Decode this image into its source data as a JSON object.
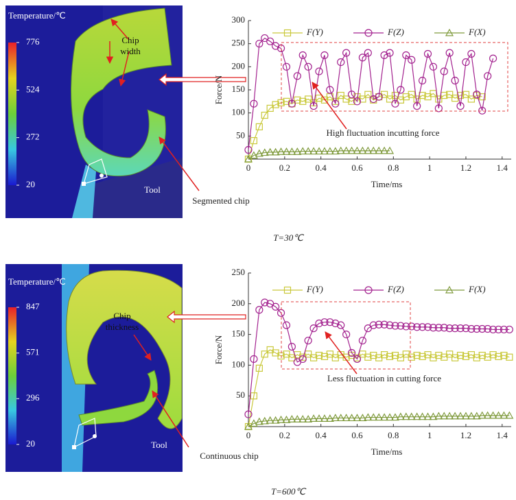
{
  "chart_data": [
    {
      "type": "line",
      "x_label": "Time/ms",
      "y_label": "Force/N",
      "xlim": [
        0,
        1.45
      ],
      "ylim": [
        0,
        300
      ],
      "xticks": [
        0,
        0.2,
        0.4,
        0.6,
        0.8,
        1.0,
        1.2,
        1.4
      ],
      "yticks": [
        50,
        100,
        150,
        200,
        250,
        300
      ],
      "legend": "top",
      "grid": false,
      "annotation": "High fluctuation incutting force",
      "x": [
        0,
        0.03,
        0.06,
        0.09,
        0.12,
        0.15,
        0.18,
        0.21,
        0.24,
        0.27,
        0.3,
        0.33,
        0.36,
        0.39,
        0.42,
        0.45,
        0.48,
        0.51,
        0.54,
        0.57,
        0.6,
        0.63,
        0.66,
        0.69,
        0.72,
        0.75,
        0.78,
        0.81,
        0.84,
        0.87,
        0.9,
        0.93,
        0.96,
        0.99,
        1.02,
        1.05,
        1.08,
        1.11,
        1.14,
        1.17,
        1.2,
        1.23,
        1.26,
        1.29,
        1.32,
        1.35
      ],
      "series": [
        {
          "name": "F(Y)",
          "color": "#c9c83a",
          "marker": "square",
          "values": [
            0,
            40,
            70,
            95,
            110,
            118,
            122,
            125,
            120,
            128,
            125,
            130,
            122,
            132,
            128,
            135,
            125,
            138,
            130,
            125,
            135,
            130,
            140,
            128,
            135,
            140,
            130,
            138,
            128,
            135,
            140,
            130,
            138,
            135,
            142,
            130,
            138,
            140,
            132,
            138,
            140,
            130,
            138,
            135,
            null,
            null
          ]
        },
        {
          "name": "F(Z)",
          "color": "#a3228f",
          "marker": "circle",
          "values": [
            20,
            120,
            250,
            262,
            255,
            245,
            240,
            200,
            120,
            180,
            225,
            200,
            115,
            190,
            225,
            150,
            120,
            210,
            230,
            140,
            125,
            220,
            230,
            130,
            135,
            225,
            230,
            120,
            150,
            225,
            215,
            115,
            170,
            228,
            200,
            110,
            190,
            230,
            170,
            115,
            210,
            228,
            140,
            105,
            180,
            218
          ]
        },
        {
          "name": "F(X)",
          "color": "#7f9a3c",
          "marker": "triangle",
          "values": [
            0,
            8,
            12,
            14,
            15,
            15,
            16,
            16,
            16,
            16,
            17,
            17,
            17,
            17,
            17,
            17,
            17,
            18,
            18,
            18,
            18,
            18,
            18,
            18,
            18,
            18,
            18,
            null,
            null,
            null,
            null,
            null,
            null,
            null,
            null,
            null,
            null,
            null,
            null,
            null,
            null,
            null,
            null,
            null,
            null,
            null
          ]
        }
      ]
    },
    {
      "type": "line",
      "x_label": "Time/ms",
      "y_label": "Force/N",
      "xlim": [
        0,
        1.45
      ],
      "ylim": [
        0,
        250
      ],
      "xticks": [
        0,
        0.2,
        0.4,
        0.6,
        0.8,
        1.0,
        1.2,
        1.4
      ],
      "yticks": [
        50,
        100,
        150,
        200,
        250
      ],
      "legend": "top",
      "grid": false,
      "annotation": "Less fluctuation in cutting force",
      "x": [
        0,
        0.03,
        0.06,
        0.09,
        0.12,
        0.15,
        0.18,
        0.21,
        0.24,
        0.27,
        0.3,
        0.33,
        0.36,
        0.39,
        0.42,
        0.45,
        0.48,
        0.51,
        0.54,
        0.57,
        0.6,
        0.63,
        0.66,
        0.69,
        0.72,
        0.75,
        0.78,
        0.81,
        0.84,
        0.87,
        0.9,
        0.93,
        0.96,
        0.99,
        1.02,
        1.05,
        1.08,
        1.11,
        1.14,
        1.17,
        1.2,
        1.23,
        1.26,
        1.29,
        1.32,
        1.35,
        1.38,
        1.41,
        1.44
      ],
      "series": [
        {
          "name": "F(Y)",
          "color": "#c9c83a",
          "marker": "square",
          "values": [
            0,
            50,
            95,
            118,
            125,
            120,
            115,
            118,
            112,
            117,
            113,
            118,
            112,
            116,
            114,
            118,
            112,
            117,
            113,
            116,
            112,
            118,
            113,
            116,
            112,
            117,
            114,
            116,
            112,
            118,
            113,
            116,
            114,
            117,
            112,
            116,
            113,
            118,
            112,
            116,
            114,
            117,
            112,
            116,
            113,
            117,
            114,
            116,
            113
          ]
        },
        {
          "name": "F(Z)",
          "color": "#a3228f",
          "marker": "circle",
          "values": [
            20,
            110,
            190,
            202,
            200,
            195,
            185,
            165,
            130,
            105,
            110,
            140,
            160,
            168,
            170,
            170,
            168,
            165,
            150,
            120,
            110,
            140,
            160,
            165,
            166,
            166,
            165,
            164,
            164,
            163,
            163,
            162,
            162,
            162,
            161,
            161,
            161,
            160,
            160,
            160,
            160,
            159,
            159,
            159,
            159,
            158,
            158,
            158,
            158
          ]
        },
        {
          "name": "F(X)",
          "color": "#7f9a3c",
          "marker": "triangle",
          "values": [
            0,
            5,
            8,
            9,
            10,
            10,
            11,
            11,
            12,
            12,
            12,
            12,
            13,
            13,
            13,
            13,
            14,
            14,
            14,
            14,
            14,
            14,
            15,
            15,
            15,
            15,
            15,
            15,
            16,
            16,
            16,
            16,
            16,
            16,
            16,
            17,
            17,
            17,
            17,
            17,
            17,
            17,
            17,
            18,
            18,
            18,
            18,
            18,
            18
          ]
        }
      ]
    }
  ],
  "panels": [
    {
      "scale_title": "Temperature/℃",
      "scale_ticks": [
        776,
        524,
        272,
        20
      ],
      "feature_label": [
        "Chip",
        "width"
      ],
      "tool_label": "Tool",
      "chip_label": "Segmented chip",
      "caption": "T=30℃"
    },
    {
      "scale_title": "Temperature/℃",
      "scale_ticks": [
        847,
        571,
        296,
        20
      ],
      "feature_label": [
        "Chip",
        "thickness"
      ],
      "tool_label": "Tool",
      "chip_label": "Continuous chip",
      "caption": "T=600℃"
    }
  ]
}
